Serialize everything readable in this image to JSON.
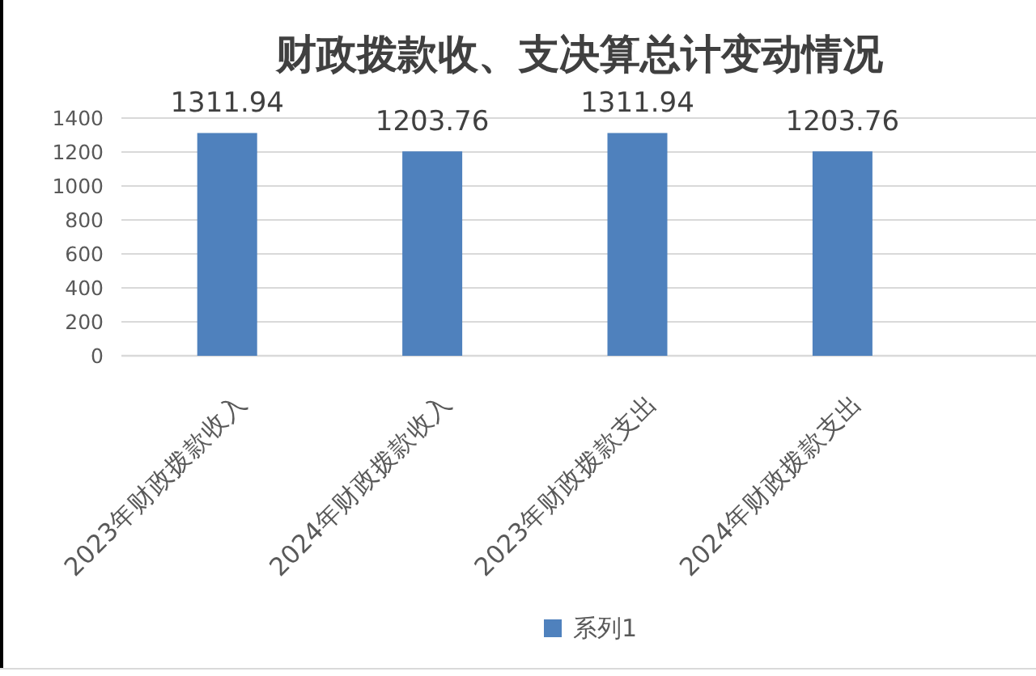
{
  "chart_data": {
    "type": "bar",
    "title": "财政拨款收、支决算总计变动情况",
    "categories": [
      "2023年财政拨款收入",
      "2024年财政拨款收入",
      "2023年财政拨款支出",
      "2024年财政拨款支出"
    ],
    "series": [
      {
        "name": "系列1",
        "color": "#4f81bd",
        "values": [
          1311.94,
          1203.76,
          1311.94,
          1203.76
        ]
      }
    ],
    "ylim": [
      0,
      1400
    ],
    "yticks": [
      0,
      200,
      400,
      600,
      800,
      1000,
      1200,
      1400
    ],
    "grid": "y",
    "legend": "bottom",
    "data_labels": true
  }
}
